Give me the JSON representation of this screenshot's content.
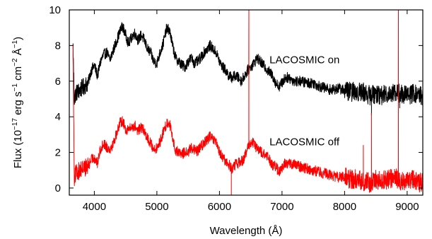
{
  "chart_data": {
    "type": "line",
    "xlabel": "Wavelength (Å)",
    "ylabel_parts": {
      "prefix": "Flux (10",
      "exp1": "−17",
      "mid1": " erg s",
      "exp2": "−1",
      "mid2": " cm",
      "exp3": "−2",
      "mid3": " Å",
      "exp4": "−1",
      "suffix": ")"
    },
    "xlim": [
      3600,
      9250
    ],
    "ylim": [
      -0.4,
      10
    ],
    "xticks": [
      4000,
      5000,
      6000,
      7000,
      8000,
      9000
    ],
    "yticks": [
      0,
      2,
      4,
      6,
      8,
      10
    ],
    "grid": false,
    "legend": "none",
    "annotations": [
      {
        "text": "LACOSMIC on",
        "x": 6800,
        "y": 7.0
      },
      {
        "text": "LACOSMIC off",
        "x": 6800,
        "y": 2.4
      }
    ],
    "series": [
      {
        "color": "#000000",
        "base": [
          [
            3660,
            7.9
          ],
          [
            3680,
            5.0
          ],
          [
            3700,
            5.3
          ],
          [
            3800,
            5.6
          ],
          [
            3900,
            5.9
          ],
          [
            3950,
            6.6
          ],
          [
            4000,
            6.9
          ],
          [
            4050,
            6.3
          ],
          [
            4100,
            7.1
          ],
          [
            4150,
            7.5
          ],
          [
            4200,
            7.6
          ],
          [
            4250,
            7.2
          ],
          [
            4300,
            7.7
          ],
          [
            4350,
            8.2
          ],
          [
            4400,
            8.7
          ],
          [
            4450,
            9.1
          ],
          [
            4500,
            8.6
          ],
          [
            4550,
            8.1
          ],
          [
            4600,
            8.5
          ],
          [
            4650,
            8.7
          ],
          [
            4700,
            8.3
          ],
          [
            4750,
            8.6
          ],
          [
            4800,
            8.3
          ],
          [
            4850,
            7.8
          ],
          [
            4900,
            7.6
          ],
          [
            4950,
            7.1
          ],
          [
            5000,
            7.0
          ],
          [
            5050,
            7.6
          ],
          [
            5100,
            8.1
          ],
          [
            5150,
            8.9
          ],
          [
            5200,
            8.9
          ],
          [
            5250,
            8.0
          ],
          [
            5300,
            7.3
          ],
          [
            5350,
            7.1
          ],
          [
            5400,
            6.9
          ],
          [
            5450,
            6.8
          ],
          [
            5500,
            7.1
          ],
          [
            5550,
            7.3
          ],
          [
            5600,
            7.0
          ],
          [
            5650,
            7.1
          ],
          [
            5700,
            7.3
          ],
          [
            5750,
            7.6
          ],
          [
            5800,
            7.8
          ],
          [
            5850,
            8.0
          ],
          [
            5900,
            7.8
          ],
          [
            5950,
            7.6
          ],
          [
            6000,
            7.1
          ],
          [
            6050,
            6.8
          ],
          [
            6100,
            6.6
          ],
          [
            6150,
            6.3
          ],
          [
            6200,
            6.2
          ],
          [
            6250,
            6.3
          ],
          [
            6300,
            6.2
          ],
          [
            6350,
            6.0
          ],
          [
            6400,
            6.3
          ],
          [
            6450,
            6.6
          ],
          [
            6500,
            6.8
          ],
          [
            6550,
            7.0
          ],
          [
            6600,
            7.3
          ],
          [
            6650,
            7.1
          ],
          [
            6700,
            6.9
          ],
          [
            6750,
            6.7
          ],
          [
            6800,
            6.5
          ],
          [
            6850,
            6.3
          ],
          [
            6900,
            5.9
          ],
          [
            6950,
            5.7
          ],
          [
            7000,
            5.9
          ],
          [
            7050,
            6.2
          ],
          [
            7100,
            6.2
          ],
          [
            7200,
            6.0
          ],
          [
            7300,
            6.0
          ],
          [
            7400,
            5.9
          ],
          [
            7500,
            5.9
          ],
          [
            7600,
            5.7
          ],
          [
            7700,
            5.6
          ],
          [
            7800,
            5.5
          ],
          [
            7900,
            5.6
          ],
          [
            8000,
            5.5
          ],
          [
            8100,
            5.4
          ],
          [
            8200,
            5.4
          ],
          [
            8300,
            5.4
          ],
          [
            8400,
            5.2
          ],
          [
            8500,
            5.3
          ],
          [
            8600,
            5.2
          ],
          [
            8700,
            5.3
          ],
          [
            8800,
            5.4
          ],
          [
            8900,
            5.3
          ],
          [
            9000,
            5.2
          ],
          [
            9100,
            5.3
          ],
          [
            9200,
            5.2
          ]
        ],
        "spikes": [
          [
            6470,
            10.0
          ],
          [
            8430,
            4.1
          ],
          [
            8860,
            10.0
          ],
          [
            8880,
            4.5
          ]
        ]
      },
      {
        "color": "#ff0000",
        "base": [
          [
            3660,
            7.8
          ],
          [
            3680,
            0.6
          ],
          [
            3700,
            0.8
          ],
          [
            3800,
            1.1
          ],
          [
            3900,
            1.2
          ],
          [
            3950,
            1.6
          ],
          [
            4000,
            1.7
          ],
          [
            4050,
            1.4
          ],
          [
            4100,
            2.2
          ],
          [
            4150,
            2.5
          ],
          [
            4200,
            2.3
          ],
          [
            4250,
            2.2
          ],
          [
            4300,
            2.5
          ],
          [
            4350,
            3.0
          ],
          [
            4400,
            3.6
          ],
          [
            4450,
            3.8
          ],
          [
            4500,
            3.3
          ],
          [
            4550,
            3.3
          ],
          [
            4600,
            3.4
          ],
          [
            4650,
            3.5
          ],
          [
            4700,
            3.2
          ],
          [
            4750,
            3.4
          ],
          [
            4800,
            3.2
          ],
          [
            4850,
            2.8
          ],
          [
            4900,
            2.5
          ],
          [
            4950,
            2.2
          ],
          [
            5000,
            2.2
          ],
          [
            5050,
            2.6
          ],
          [
            5100,
            3.1
          ],
          [
            5150,
            3.6
          ],
          [
            5200,
            3.7
          ],
          [
            5250,
            2.8
          ],
          [
            5300,
            2.1
          ],
          [
            5350,
            2.0
          ],
          [
            5400,
            1.9
          ],
          [
            5450,
            2.0
          ],
          [
            5500,
            2.0
          ],
          [
            5550,
            2.3
          ],
          [
            5600,
            2.1
          ],
          [
            5650,
            2.1
          ],
          [
            5700,
            2.3
          ],
          [
            5750,
            2.5
          ],
          [
            5800,
            2.7
          ],
          [
            5850,
            2.9
          ],
          [
            5900,
            2.7
          ],
          [
            5950,
            2.5
          ],
          [
            6000,
            2.0
          ],
          [
            6050,
            1.7
          ],
          [
            6100,
            1.5
          ],
          [
            6150,
            1.3
          ],
          [
            6200,
            1.1
          ],
          [
            6250,
            1.3
          ],
          [
            6300,
            1.4
          ],
          [
            6350,
            1.5
          ],
          [
            6400,
            1.7
          ],
          [
            6450,
            2.2
          ],
          [
            6500,
            2.6
          ],
          [
            6550,
            2.5
          ],
          [
            6600,
            2.2
          ],
          [
            6650,
            2.1
          ],
          [
            6700,
            1.9
          ],
          [
            6750,
            1.8
          ],
          [
            6800,
            1.6
          ],
          [
            6850,
            1.3
          ],
          [
            6900,
            1.2
          ],
          [
            6950,
            0.9
          ],
          [
            7000,
            1.1
          ],
          [
            7050,
            1.4
          ],
          [
            7100,
            1.4
          ],
          [
            7200,
            1.3
          ],
          [
            7300,
            1.2
          ],
          [
            7400,
            1.1
          ],
          [
            7500,
            1.0
          ],
          [
            7600,
            0.9
          ],
          [
            7700,
            0.8
          ],
          [
            7800,
            0.7
          ],
          [
            7900,
            0.6
          ],
          [
            8000,
            0.6
          ],
          [
            8100,
            0.5
          ],
          [
            8200,
            0.5
          ],
          [
            8300,
            0.4
          ],
          [
            8400,
            0.3
          ],
          [
            8500,
            0.5
          ],
          [
            8600,
            0.4
          ],
          [
            8700,
            0.5
          ],
          [
            8800,
            0.6
          ],
          [
            8900,
            0.4
          ],
          [
            9000,
            0.4
          ],
          [
            9100,
            0.5
          ],
          [
            9200,
            0.3
          ]
        ],
        "spikes": [
          [
            3660,
            8.0
          ],
          [
            6190,
            -0.4
          ],
          [
            6470,
            10.0
          ],
          [
            8300,
            2.4
          ],
          [
            8430,
            4.2
          ],
          [
            8860,
            10.0
          ]
        ]
      }
    ]
  }
}
